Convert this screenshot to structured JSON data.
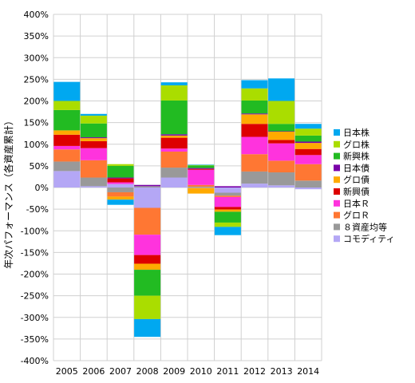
{
  "chart_data": {
    "type": "bar",
    "stacked": true,
    "title": "",
    "xlabel": "",
    "ylabel": "年次パフォーマンス（各資産累計）",
    "ylim": [
      -400,
      400
    ],
    "ytick_step": 50,
    "y_unit": "%",
    "grid": true,
    "legend_position": "right",
    "categories": [
      "2005",
      "2006",
      "2007",
      "2008",
      "2009",
      "2010",
      "2011",
      "2012",
      "2013",
      "2014"
    ],
    "series": [
      {
        "name": "コモディティ",
        "color": "#b4a7f5",
        "values": [
          38,
          3,
          8,
          -47,
          23,
          -1,
          -12,
          9,
          5,
          -4
        ]
      },
      {
        "name": "８資産均等",
        "color": "#999999",
        "values": [
          22,
          20,
          -11,
          3,
          23,
          2,
          -7,
          28,
          30,
          16
        ]
      },
      {
        "name": "グロＲ",
        "color": "#ff7733",
        "values": [
          28,
          40,
          -10,
          -62,
          37,
          4,
          -3,
          40,
          27,
          38
        ]
      },
      {
        "name": "日本Ｒ",
        "color": "#ff33dd",
        "values": [
          8,
          28,
          4,
          -47,
          7,
          35,
          -23,
          40,
          40,
          21
        ]
      },
      {
        "name": "新興債",
        "color": "#dd0000",
        "values": [
          26,
          16,
          9,
          -20,
          25,
          2,
          -6,
          30,
          8,
          14
        ]
      },
      {
        "name": "グロ債",
        "color": "#ffaa00",
        "values": [
          10,
          7,
          -7,
          -14,
          5,
          -13,
          -5,
          22,
          19,
          14
        ]
      },
      {
        "name": "日本債",
        "color": "#7a00a8",
        "values": [
          0,
          2,
          2,
          3,
          3,
          2,
          3,
          2,
          1,
          3
        ]
      },
      {
        "name": "新興株",
        "color": "#22bb22",
        "values": [
          47,
          32,
          27,
          -60,
          78,
          6,
          -25,
          30,
          17,
          14
        ]
      },
      {
        "name": "グロ株",
        "color": "#aadd00",
        "values": [
          21,
          18,
          4,
          -54,
          35,
          1,
          -10,
          28,
          53,
          16
        ]
      },
      {
        "name": "日本株",
        "color": "#00a8f0",
        "values": [
          44,
          4,
          -12,
          -41,
          7,
          1,
          -19,
          19,
          52,
          11
        ]
      }
    ],
    "legend_order": [
      "日本株",
      "グロ株",
      "新興株",
      "日本債",
      "グロ債",
      "新興債",
      "日本Ｒ",
      "グロＲ",
      "８資産均等",
      "コモディティ"
    ]
  }
}
